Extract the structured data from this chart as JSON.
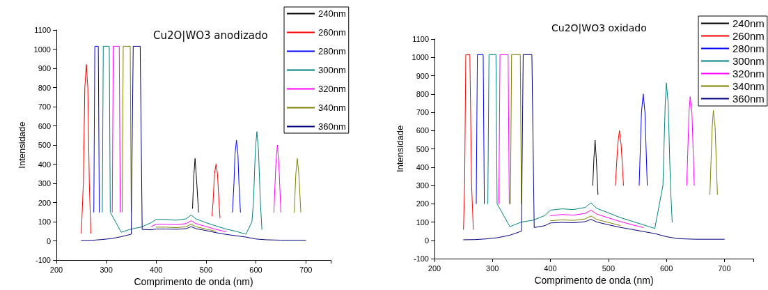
{
  "chart_data": [
    {
      "type": "line",
      "title": "Cu2O|WO3 anodizado",
      "xlabel": "Comprimento de onda (nm)",
      "ylabel": "Intensidade",
      "xlim": [
        200,
        750
      ],
      "xticks": [
        200,
        300,
        400,
        500,
        600,
        700,
        {
          "value": 750,
          "label": null
        }
      ],
      "ylim": [
        -100,
        1100
      ],
      "yticks": [
        -100,
        0,
        100,
        200,
        300,
        400,
        500,
        600,
        700,
        800,
        900,
        1000,
        1100
      ],
      "grid": false,
      "legend": "top right",
      "marker": "none",
      "line_style": "solid",
      "series": [
        {
          "name": "240nm",
          "color": "#000000",
          "x": [
            473,
            475,
            478,
            481,
            485
          ],
          "values": [
            170,
            320,
            430,
            320,
            150
          ]
        },
        {
          "name": "260nm",
          "color": "#ff0000",
          "x": [
            250,
            254,
            257,
            260,
            263,
            266,
            269,
            400,
            512,
            514,
            517,
            520,
            523,
            526,
            528
          ],
          "values": [
            40,
            300,
            800,
            920,
            800,
            300,
            40,
            null,
            130,
            200,
            350,
            400,
            350,
            200,
            120
          ]
        },
        {
          "name": "280nm",
          "color": "#0000ff",
          "x": [
            275,
            277,
            284,
            286,
            400,
            553,
            556,
            558,
            561,
            564,
            566,
            569
          ],
          "values": [
            150,
            1015,
            1015,
            150,
            null,
            150,
            300,
            450,
            525,
            450,
            300,
            150
          ]
        },
        {
          "name": "300nm",
          "color": "#008080",
          "x": [
            292,
            294,
            306,
            308,
            330,
            350,
            370,
            390,
            400,
            420,
            440,
            460,
            470,
            480,
            500,
            520,
            540,
            560,
            580,
            592,
            595,
            599,
            602,
            605,
            609,
            612
          ],
          "values": [
            150,
            1015,
            1015,
            150,
            45,
            62,
            72,
            95,
            112,
            112,
            108,
            115,
            135,
            115,
            95,
            78,
            62,
            50,
            35,
            100,
            200,
            480,
            570,
            480,
            200,
            60
          ]
        },
        {
          "name": "320nm",
          "color": "#ff00ff",
          "x": [
            312,
            314,
            326,
            328,
            360,
            390,
            400,
            420,
            440,
            460,
            470,
            480,
            500,
            520,
            540,
            600,
            636,
            640,
            643,
            646,
            650
          ],
          "values": [
            150,
            1015,
            1015,
            150,
            null,
            75,
            87,
            87,
            85,
            90,
            105,
            90,
            75,
            60,
            48,
            null,
            150,
            400,
            500,
            400,
            150
          ]
        },
        {
          "name": "340nm",
          "color": "#808000",
          "x": [
            332,
            334,
            348,
            350,
            380,
            400,
            420,
            440,
            460,
            470,
            480,
            500,
            520,
            600,
            677,
            680,
            683,
            686,
            690
          ],
          "values": [
            150,
            1015,
            1015,
            150,
            null,
            72,
            72,
            69,
            74,
            87,
            74,
            62,
            50,
            null,
            150,
            350,
            430,
            350,
            150
          ]
        },
        {
          "name": "360nm",
          "color": "#000080",
          "x": [
            250,
            270,
            290,
            310,
            330,
            350,
            354,
            368,
            372,
            390,
            400,
            420,
            440,
            460,
            470,
            480,
            500,
            520,
            540,
            560,
            580,
            600,
            620,
            650,
            700
          ],
          "values": [
            2,
            3,
            7,
            12,
            22,
            35,
            1015,
            1015,
            60,
            58,
            62,
            62,
            61,
            64,
            74,
            64,
            54,
            43,
            34,
            27,
            20,
            10,
            6,
            4,
            4
          ]
        }
      ]
    },
    {
      "type": "line",
      "title": "Cu2O|WO3 oxidado",
      "xlabel": "Comprimento de onda (nm)",
      "ylabel": "Intensidade",
      "xlim": [
        200,
        750
      ],
      "xticks": [
        200,
        300,
        400,
        500,
        600,
        700,
        {
          "value": 750,
          "label": null
        }
      ],
      "ylim": [
        -100,
        1100
      ],
      "yticks": [
        -100,
        0,
        100,
        200,
        300,
        400,
        500,
        600,
        700,
        800,
        900,
        1000,
        1100
      ],
      "grid": false,
      "legend": "top right",
      "marker": "none",
      "line_style": "solid",
      "series": [
        {
          "name": "240nm",
          "color": "#000000",
          "x": [
            473,
            475,
            477,
            479,
            482
          ],
          "values": [
            300,
            450,
            548,
            450,
            250
          ]
        },
        {
          "name": "260nm",
          "color": "#ff0000",
          "x": [
            250,
            252,
            254,
            261,
            264,
            267,
            400,
            512,
            516,
            519,
            522,
            526
          ],
          "values": [
            60,
            300,
            1015,
            1015,
            300,
            60,
            null,
            300,
            520,
            600,
            520,
            300
          ]
        },
        {
          "name": "280nm",
          "color": "#0000ff",
          "x": [
            272,
            274,
            284,
            286,
            400,
            553,
            557,
            560,
            563,
            567
          ],
          "values": [
            200,
            1015,
            1015,
            200,
            null,
            300,
            700,
            800,
            700,
            300
          ]
        },
        {
          "name": "300nm",
          "color": "#008080",
          "x": [
            292,
            294,
            306,
            308,
            330,
            350,
            370,
            390,
            400,
            420,
            440,
            460,
            470,
            480,
            500,
            520,
            540,
            560,
            580,
            594,
            598,
            600,
            603,
            607,
            610
          ],
          "values": [
            200,
            1015,
            1015,
            200,
            75,
            100,
            110,
            135,
            165,
            172,
            168,
            180,
            205,
            175,
            150,
            125,
            105,
            85,
            65,
            300,
            750,
            860,
            750,
            300,
            100
          ]
        },
        {
          "name": "320nm",
          "color": "#ff00ff",
          "x": [
            311,
            313,
            327,
            329,
            360,
            400,
            420,
            440,
            460,
            470,
            480,
            500,
            520,
            540,
            560,
            600,
            635,
            639,
            641,
            644,
            648
          ],
          "values": [
            200,
            1015,
            1015,
            200,
            null,
            135,
            141,
            138,
            147,
            165,
            143,
            123,
            103,
            86,
            70,
            null,
            300,
            700,
            785,
            700,
            300
          ]
        },
        {
          "name": "340nm",
          "color": "#808000",
          "x": [
            331,
            333,
            348,
            350,
            380,
            400,
            420,
            440,
            460,
            470,
            480,
            500,
            520,
            600,
            675,
            679,
            681,
            684,
            688
          ],
          "values": [
            200,
            1015,
            1015,
            200,
            null,
            107,
            112,
            109,
            117,
            133,
            114,
            98,
            81,
            null,
            250,
            620,
            710,
            620,
            250
          ]
        },
        {
          "name": "360nm",
          "color": "#000080",
          "x": [
            250,
            270,
            290,
            310,
            330,
            350,
            353,
            368,
            372,
            390,
            400,
            420,
            440,
            460,
            470,
            480,
            500,
            520,
            540,
            560,
            580,
            600,
            620,
            650,
            700
          ],
          "values": [
            3,
            4,
            8,
            15,
            28,
            50,
            1015,
            1015,
            70,
            80,
            95,
            98,
            96,
            102,
            115,
            100,
            85,
            71,
            60,
            48,
            37,
            20,
            9,
            6,
            6
          ]
        }
      ]
    }
  ]
}
